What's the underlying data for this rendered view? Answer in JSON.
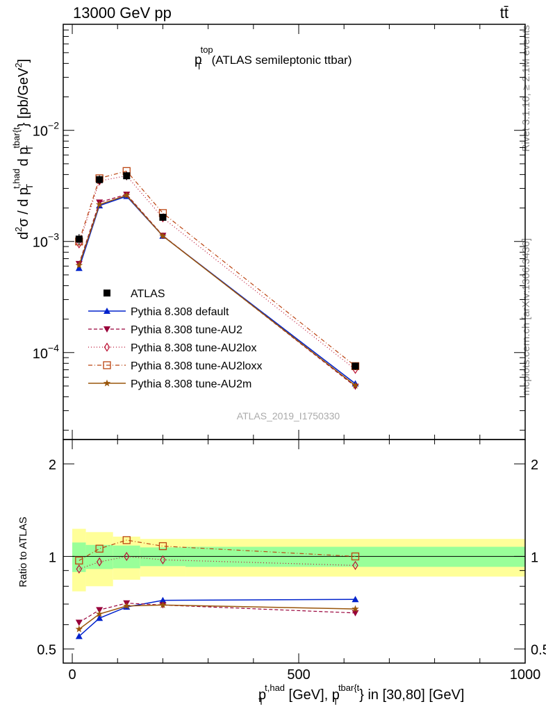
{
  "header": {
    "left": "13000 GeV pp",
    "right": "tt̄"
  },
  "title": {
    "main": "p",
    "sup": "top",
    "sub": "T",
    "rest": "(ATLAS semileptonic ttbar)"
  },
  "watermark": {
    "analysis": "ATLAS_2019_I1750330",
    "side_top": "Rivet 3.1.10, ≥ 2.1M events",
    "side_bottom": "mcplots.cern.ch [arXiv:1306.3436]"
  },
  "axes": {
    "ylabel_main": {
      "a": "d",
      "a_sup": "2",
      "b": "σ  /  d p",
      "b_sub": "T",
      "b_sup": "t,had",
      "c": " d p",
      "c_sub": "T",
      "c_sup": "tbar{t",
      "d": "} [pb/GeV",
      "d_sup": "2",
      "e": "]"
    },
    "ylabel_ratio": "Ratio to ATLAS",
    "xlabel": {
      "a": "p",
      "a_sub": "T",
      "a_sup": "t,had",
      "b": " [GeV], p",
      "b_sub": "T",
      "b_sup": "tbar{t",
      "c": "} in [30,80] [GeV]"
    },
    "main_yticks": [
      {
        "mant": "10",
        "exp": "−4",
        "value": 0.0001
      },
      {
        "mant": "10",
        "exp": "−3",
        "value": 0.001
      },
      {
        "mant": "10",
        "exp": "−2",
        "value": 0.01
      }
    ],
    "ratio_yticks": [
      "0.5",
      "1",
      "2"
    ],
    "xticks": [
      "0",
      "500",
      "1000"
    ]
  },
  "legend": [
    {
      "label": "ATLAS"
    },
    {
      "label": "Pythia 8.308 default"
    },
    {
      "label": "Pythia 8.308 tune-AU2"
    },
    {
      "label": "Pythia 8.308 tune-AU2lox"
    },
    {
      "label": "Pythia 8.308 tune-AU2loxx"
    },
    {
      "label": "Pythia 8.308 tune-AU2m"
    }
  ],
  "chart_data": {
    "type": "line",
    "xlim": [
      -20,
      1000
    ],
    "ylim": [
      1.65e-05,
      0.09
    ],
    "ratio_ylim": [
      0.45,
      2.4
    ],
    "yscale": "log",
    "grid": false,
    "legend_position": "middle-left",
    "bins": [
      [
        0,
        30
      ],
      [
        30,
        90
      ],
      [
        90,
        150
      ],
      [
        150,
        250
      ],
      [
        250,
        1000
      ]
    ],
    "x": [
      15,
      60,
      120,
      200,
      625
    ],
    "reference": {
      "name": "ATLAS",
      "values": [
        0.00105,
        0.0036,
        0.0039,
        0.00165,
        7.55e-05
      ],
      "band_inner": [
        0.11,
        0.09,
        0.085,
        0.07,
        0.075
      ],
      "band_outer": [
        0.23,
        0.2,
        0.16,
        0.14,
        0.14
      ],
      "color": "#000000"
    },
    "series": [
      {
        "name": "Pythia 8.308 default",
        "values": [
          0.000575,
          0.0021,
          0.00255,
          0.00112,
          5.25e-05
        ],
        "ratio": [
          0.55,
          0.63,
          0.685,
          0.72,
          0.725
        ],
        "color": "#0022cc",
        "dash": "",
        "marker": "triangle-up",
        "width": 1.5
      },
      {
        "name": "Pythia 8.308 tune-AU2",
        "values": [
          0.00063,
          0.00225,
          0.00265,
          0.00113,
          4.95e-05
        ],
        "ratio": [
          0.61,
          0.67,
          0.705,
          0.695,
          0.655
        ],
        "color": "#99003a",
        "dash": "5,3",
        "marker": "triangle-down",
        "width": 1.2
      },
      {
        "name": "Pythia 8.308 tune-AU2lox",
        "values": [
          0.00095,
          0.0035,
          0.0039,
          0.00163,
          7.05e-05
        ],
        "ratio": [
          0.91,
          0.96,
          1.0,
          0.975,
          0.935
        ],
        "color": "#bb1133",
        "dash": "1,3",
        "marker": "diamond-open",
        "width": 1.2
      },
      {
        "name": "Pythia 8.308 tune-AU2loxx",
        "values": [
          0.001,
          0.0037,
          0.0043,
          0.0018,
          7.55e-05
        ],
        "ratio": [
          0.97,
          1.06,
          1.13,
          1.08,
          1.0
        ],
        "color": "#bb4411",
        "dash": "6,3,1,3",
        "marker": "square-open",
        "width": 1.2
      },
      {
        "name": "Pythia 8.308 tune-AU2m",
        "values": [
          0.00061,
          0.00215,
          0.0026,
          0.00112,
          5.05e-05
        ],
        "ratio": [
          0.58,
          0.65,
          0.69,
          0.695,
          0.675
        ],
        "color": "#99550a",
        "dash": "",
        "marker": "star",
        "width": 1.5
      }
    ]
  }
}
